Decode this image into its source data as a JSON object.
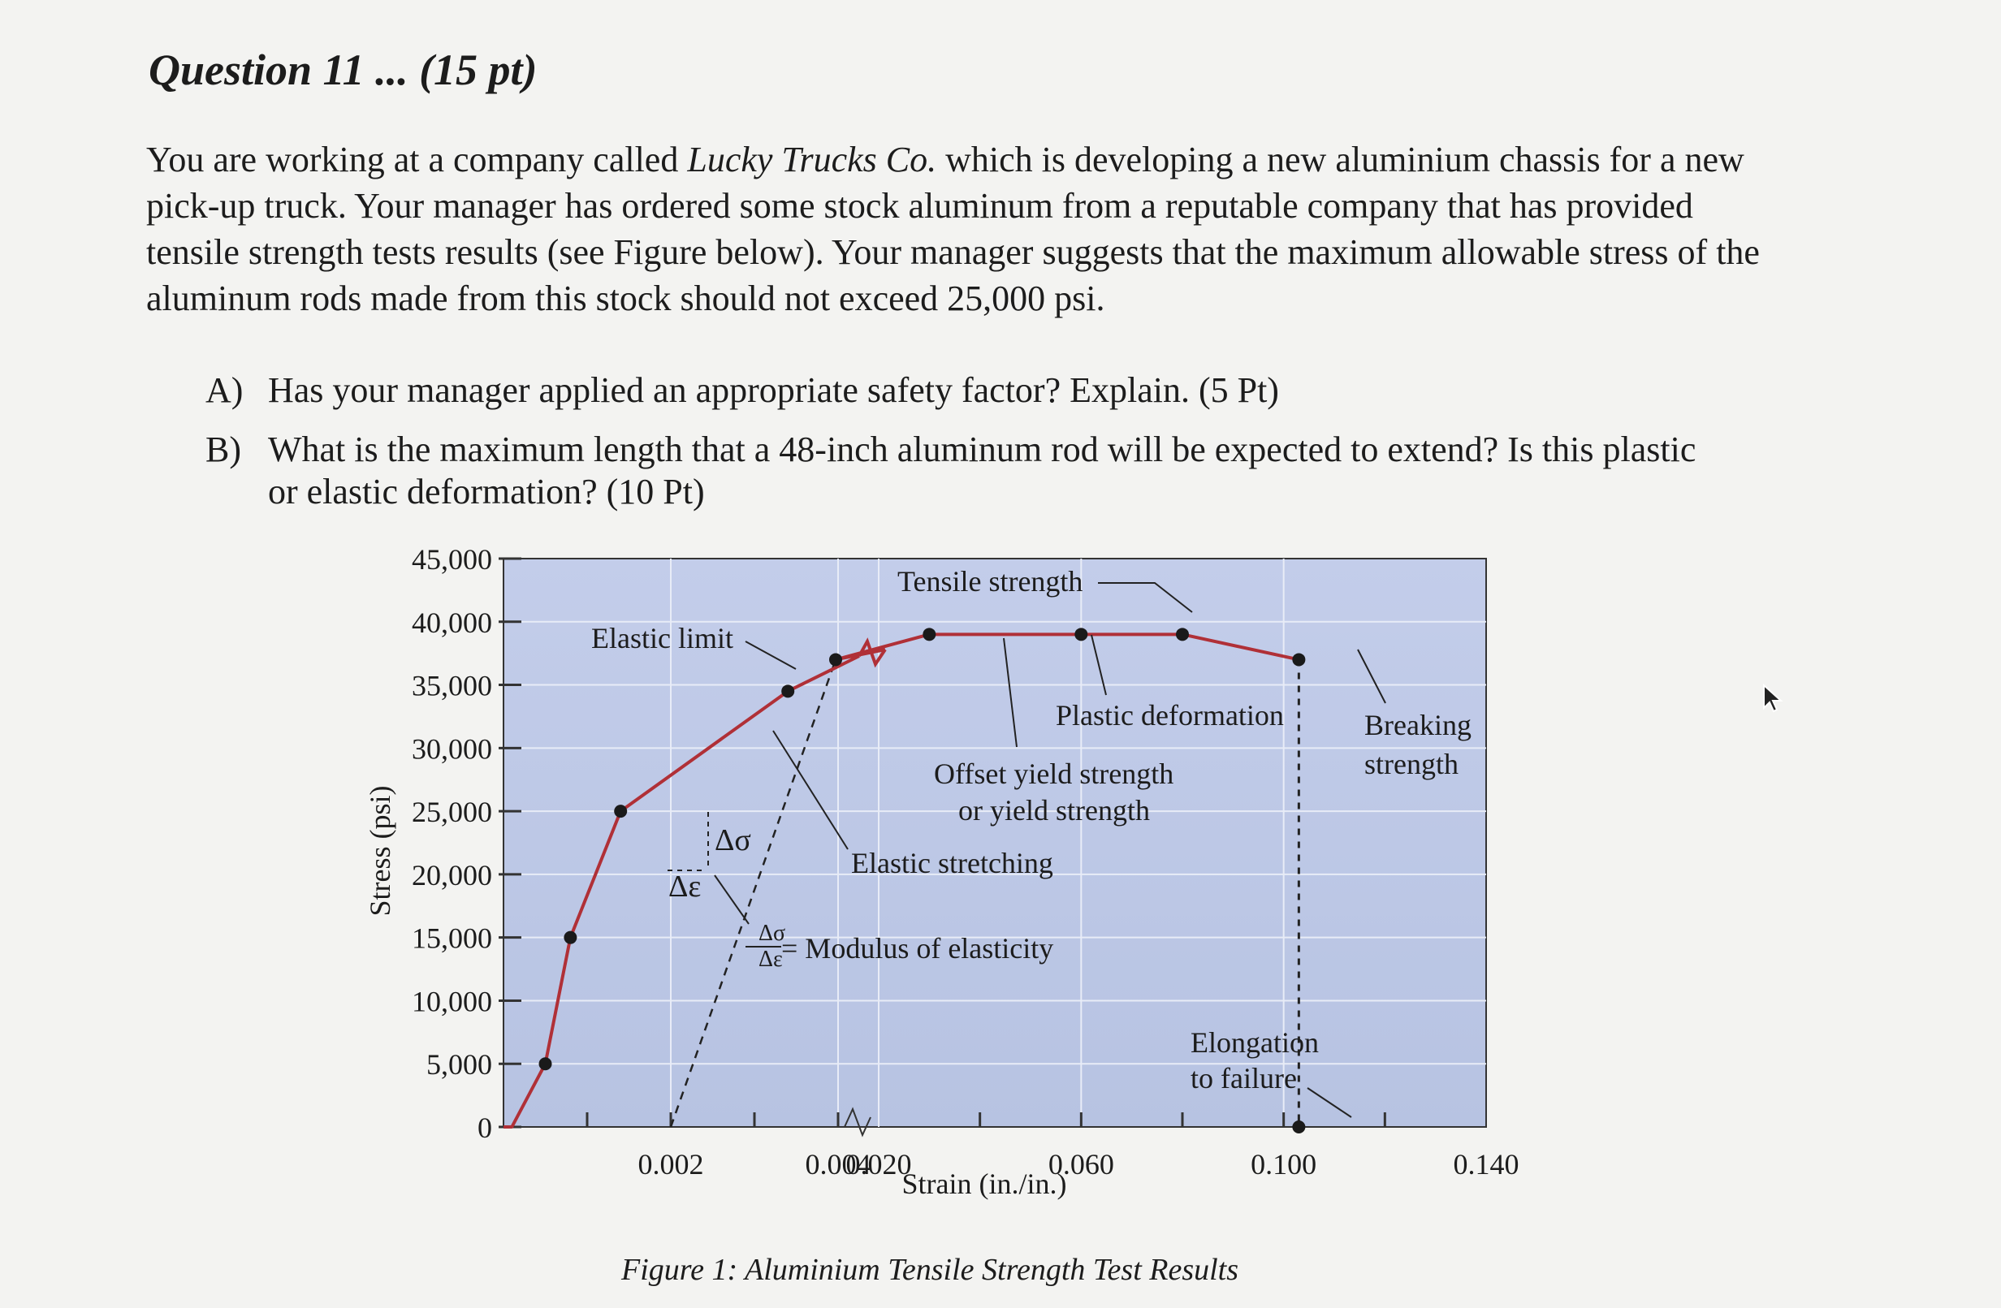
{
  "question": {
    "title": "Question 11 ... (15 pt)",
    "intro_before": "You are working at a company called ",
    "intro_company": "Lucky Trucks Co.",
    "intro_after": " which is developing a new aluminium chassis for a new pick-up truck. Your manager has ordered some stock aluminum from a reputable company that has provided tensile strength tests results (see Figure below). Your manager suggests that the maximum allowable stress of the aluminum rods made from this stock should not exceed 25,000 psi.",
    "parts": [
      {
        "label": "A)",
        "text": "Has your manager applied an appropriate safety factor? Explain. (5 Pt)"
      },
      {
        "label": "B)",
        "text": "What is the maximum length that a 48-inch aluminum rod will be expected to extend? Is this plastic or elastic deformation? (10 Pt)"
      }
    ]
  },
  "figure_caption": "Figure 1: Aluminium Tensile Strength Test Results",
  "colors": {
    "plot_bg": "#b7c3e2",
    "curve": "#b03037",
    "point": "#1a1a1a",
    "background": "#f3f3f1"
  },
  "chart_data": {
    "type": "line",
    "title": "",
    "xlabel": "Strain (in./in.)",
    "ylabel": "Stress (psi)",
    "ylim": [
      0,
      45000
    ],
    "x_axis_note": "broken axis: linear 0 to 0.004, then 0.020 to 0.140",
    "x_tick_labels": [
      "0.002",
      "0.004",
      "0.020",
      "0.060",
      "0.100",
      "0.140"
    ],
    "y_tick_labels": [
      "0",
      "5,000",
      "10,000",
      "15,000",
      "20,000",
      "25,000",
      "30,000",
      "35,000",
      "40,000",
      "45,000"
    ],
    "y_ticks": [
      0,
      5000,
      10000,
      15000,
      20000,
      25000,
      30000,
      35000,
      40000,
      45000
    ],
    "grid": true,
    "series": [
      {
        "type": "line",
        "x": [
          0,
          0.0001,
          0.0005,
          0.0008,
          0.0014,
          0.0034,
          0.0115,
          0.03,
          0.06,
          0.08,
          0.103
        ],
        "y": [
          0,
          0,
          5000,
          15000,
          25000,
          34500,
          37000,
          39000,
          39000,
          39000,
          37000
        ]
      },
      {
        "type": "scatter",
        "x": [
          0.0005,
          0.0008,
          0.0014,
          0.0034,
          0.0115,
          0.03,
          0.06,
          0.08,
          0.103,
          0.103
        ],
        "y": [
          5000,
          15000,
          25000,
          34500,
          37000,
          39000,
          39000,
          39000,
          37000,
          0
        ]
      }
    ],
    "offset_line": {
      "x": [
        0.002,
        0.0115
      ],
      "y": [
        0,
        37000
      ]
    },
    "annotations": [
      {
        "text": "Tensile strength"
      },
      {
        "text": "Elastic limit"
      },
      {
        "text": "Plastic deformation"
      },
      {
        "text": "Breaking"
      },
      {
        "text": "strength"
      },
      {
        "text": "Offset yield strength"
      },
      {
        "text": "or yield strength"
      },
      {
        "text": "Elastic stretching"
      },
      {
        "text": "Modulus of elasticity"
      },
      {
        "text": "Elongation"
      },
      {
        "text": "to failure"
      },
      {
        "text": "Δσ"
      },
      {
        "text": "Δε"
      }
    ]
  }
}
